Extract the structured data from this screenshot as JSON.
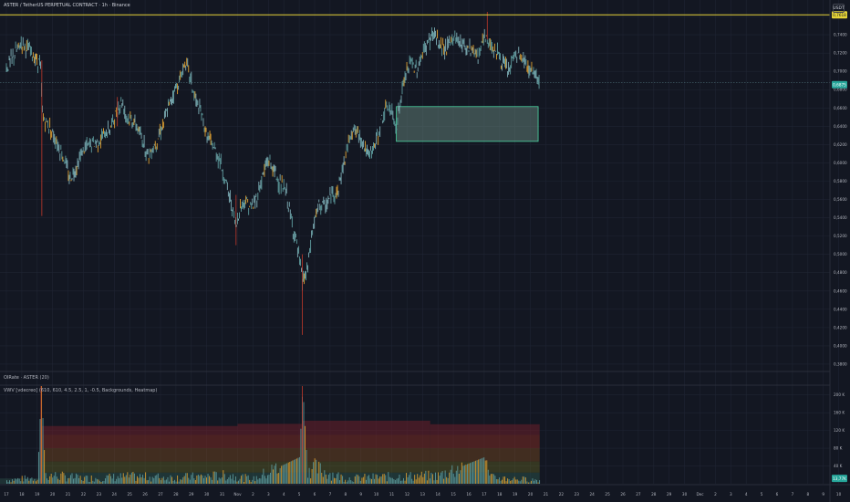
{
  "header": {
    "symbol_title": "ASTER / TetherUS PERPETUAL CONTRACT · 1h · Binance",
    "currency_button": "USDT"
  },
  "indicators": {
    "oi_label": "OIRate · ASTER (20)",
    "vwv_label": "VWV [vdecreo] (610, 610, 4.5, 2.5, 1, -0.5, Backgrounds, Heatmap)"
  },
  "colors": {
    "background": "#131722",
    "grid": "#1f2433",
    "candle_up": "#5f9ea0",
    "candle_mid": "#7fb0b8",
    "candle_warm": "#e0a030",
    "candle_red": "#c0392b",
    "resistance_line": "#e6d438",
    "zone_border": "#4cd6a2",
    "zone_fill": "#5f7c75"
  },
  "chart_data": {
    "type": "line",
    "price_axis": {
      "ticks": [
        "0,7600",
        "0,7400",
        "0,7200",
        "0,7000",
        "0,6800",
        "0,6600",
        "0,6400",
        "0,6200",
        "0,6000",
        "0,5800",
        "0,5600",
        "0,5400",
        "0,5200",
        "0,5000",
        "0,4800",
        "0,4600",
        "0,4400",
        "0,4200",
        "0,4000",
        "0,3800"
      ],
      "range": [
        0.372,
        0.778
      ]
    },
    "volume_axis": {
      "ticks": [
        "200 K",
        "160 K",
        "120 K",
        "80 K",
        "40 K"
      ],
      "range": [
        0,
        220
      ]
    },
    "time_axis": {
      "ticks": [
        "17",
        "18",
        "19",
        "20",
        "21",
        "22",
        "23",
        "24",
        "25",
        "26",
        "27",
        "28",
        "29",
        "30",
        "31",
        "Nov",
        "2",
        "3",
        "4",
        "5",
        "6",
        "7",
        "8",
        "9",
        "10",
        "11",
        "12",
        "13",
        "14",
        "15",
        "16",
        "17",
        "18",
        "19",
        "20",
        "21",
        "22",
        "23",
        "24",
        "25",
        "26",
        "27",
        "28",
        "29",
        "30",
        "Dec",
        "2",
        "3",
        "4",
        "5",
        "6",
        "7",
        "8",
        "9",
        "10",
        "11"
      ]
    },
    "price_labels": {
      "resistance": "0,7618",
      "current": "0,6875"
    },
    "volume_label": "13,77K",
    "resistance_level": 0.7618,
    "current_level": 0.6875,
    "zone": {
      "x_start": 25.3,
      "x_end": 34.5,
      "price_low": 0.6235,
      "price_high": 0.6615
    },
    "price_series": [
      [
        0,
        0.703
      ],
      [
        0.6,
        0.72
      ],
      [
        1.0,
        0.732
      ],
      [
        1.5,
        0.722
      ],
      [
        2.0,
        0.712
      ],
      [
        2.2,
        0.708
      ],
      [
        2.35,
        0.65
      ],
      [
        2.8,
        0.64
      ],
      [
        3.3,
        0.622
      ],
      [
        3.8,
        0.602
      ],
      [
        4.1,
        0.582
      ],
      [
        4.5,
        0.595
      ],
      [
        5.0,
        0.615
      ],
      [
        5.5,
        0.62
      ],
      [
        6.0,
        0.624
      ],
      [
        6.5,
        0.633
      ],
      [
        6.8,
        0.64
      ],
      [
        7.2,
        0.658
      ],
      [
        7.5,
        0.668
      ],
      [
        7.8,
        0.65
      ],
      [
        8.3,
        0.645
      ],
      [
        8.8,
        0.626
      ],
      [
        9.2,
        0.608
      ],
      [
        9.7,
        0.622
      ],
      [
        10.2,
        0.645
      ],
      [
        10.8,
        0.675
      ],
      [
        11.3,
        0.692
      ],
      [
        11.6,
        0.712
      ],
      [
        11.8,
        0.702
      ],
      [
        12.2,
        0.672
      ],
      [
        12.6,
        0.655
      ],
      [
        13.0,
        0.63
      ],
      [
        13.4,
        0.618
      ],
      [
        13.8,
        0.605
      ],
      [
        14.2,
        0.58
      ],
      [
        14.6,
        0.555
      ],
      [
        14.9,
        0.528
      ],
      [
        15.1,
        0.548
      ],
      [
        15.5,
        0.56
      ],
      [
        15.9,
        0.55
      ],
      [
        16.3,
        0.565
      ],
      [
        16.7,
        0.59
      ],
      [
        17.0,
        0.604
      ],
      [
        17.4,
        0.59
      ],
      [
        17.8,
        0.575
      ],
      [
        18.2,
        0.565
      ],
      [
        18.5,
        0.535
      ],
      [
        18.8,
        0.515
      ],
      [
        19.2,
        0.47
      ],
      [
        19.5,
        0.48
      ],
      [
        19.9,
        0.53
      ],
      [
        20.3,
        0.555
      ],
      [
        20.7,
        0.552
      ],
      [
        21.1,
        0.565
      ],
      [
        21.5,
        0.57
      ],
      [
        21.9,
        0.6
      ],
      [
        22.4,
        0.638
      ],
      [
        22.8,
        0.632
      ],
      [
        23.1,
        0.625
      ],
      [
        23.5,
        0.605
      ],
      [
        24.0,
        0.623
      ],
      [
        24.4,
        0.65
      ],
      [
        24.8,
        0.662
      ],
      [
        25.3,
        0.64
      ],
      [
        25.8,
        0.69
      ],
      [
        26.2,
        0.71
      ],
      [
        26.6,
        0.702
      ],
      [
        27.0,
        0.718
      ],
      [
        27.3,
        0.73
      ],
      [
        27.7,
        0.742
      ],
      [
        28.1,
        0.728
      ],
      [
        28.6,
        0.725
      ],
      [
        29.0,
        0.738
      ],
      [
        29.4,
        0.733
      ],
      [
        29.8,
        0.728
      ],
      [
        30.2,
        0.725
      ],
      [
        30.6,
        0.718
      ],
      [
        31.0,
        0.735
      ],
      [
        31.3,
        0.732
      ],
      [
        31.8,
        0.722
      ],
      [
        32.2,
        0.708
      ],
      [
        32.6,
        0.7
      ],
      [
        33.0,
        0.718
      ],
      [
        33.4,
        0.715
      ],
      [
        33.8,
        0.705
      ],
      [
        34.2,
        0.7
      ],
      [
        34.6,
        0.692
      ]
    ],
    "volume_series": [
      [
        0,
        8
      ],
      [
        2,
        14
      ],
      [
        2.25,
        220
      ],
      [
        2.5,
        20
      ],
      [
        5,
        12
      ],
      [
        8,
        16
      ],
      [
        11,
        14
      ],
      [
        14,
        18
      ],
      [
        14.3,
        20
      ],
      [
        16,
        10
      ],
      [
        19,
        60
      ],
      [
        19.2,
        220
      ],
      [
        19.5,
        40
      ],
      [
        22,
        12
      ],
      [
        25,
        16
      ],
      [
        28,
        18
      ],
      [
        31,
        60
      ],
      [
        31.3,
        14
      ],
      [
        34.6,
        8
      ]
    ]
  }
}
